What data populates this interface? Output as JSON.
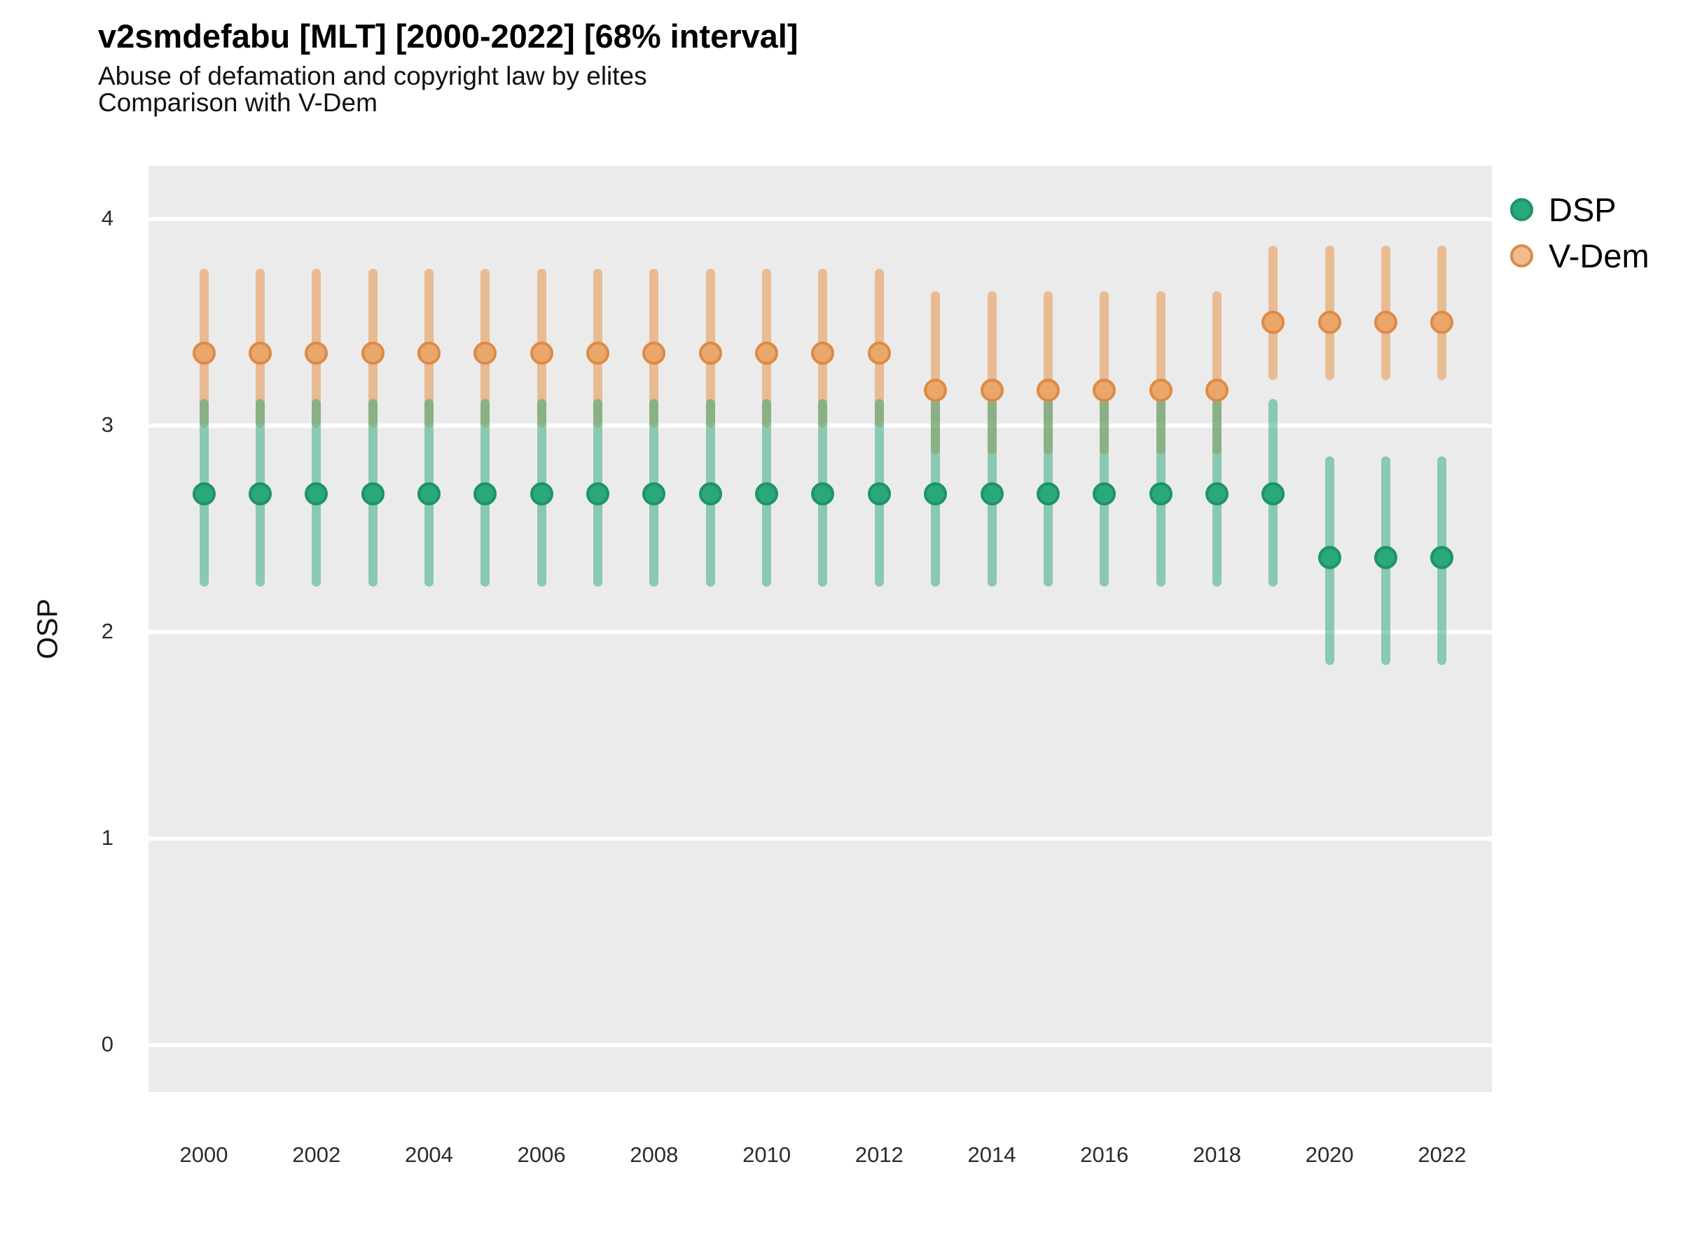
{
  "title": "v2smdefabu [MLT] [2000-2022] [68% interval]",
  "subtitle1": "Abuse of defamation and copyright law by elites",
  "subtitle2": "Comparison with V-Dem",
  "ylabel": "OSP",
  "colors": {
    "panel_background": "#EBEBEB",
    "gridline": "#FFFFFF",
    "dsp_point": "#2AA878",
    "dsp_point_ring": "#1D9467",
    "dsp_interval_bar": "rgba(42,168,120,0.5)",
    "vdem_point": "#EAA76B",
    "vdem_point_ring": "#DD8A45",
    "vdem_interval_bar": "rgba(230,140,60,0.5)",
    "vdem_legend_fill": "#F1BB90"
  },
  "legend": {
    "items": [
      {
        "label": "DSP",
        "series": "DSP"
      },
      {
        "label": "V-Dem",
        "series": "V-Dem"
      }
    ]
  },
  "chart_data": {
    "type": "scatter",
    "title": "v2smdefabu [MLT] [2000-2022] [68% interval]",
    "subtitle": [
      "Abuse of defamation and copyright law by elites",
      "Comparison with V-Dem"
    ],
    "interval": "68%",
    "xlabel": "",
    "ylabel": "OSP",
    "x": [
      2000,
      2001,
      2002,
      2003,
      2004,
      2005,
      2006,
      2007,
      2008,
      2009,
      2010,
      2011,
      2012,
      2013,
      2014,
      2015,
      2016,
      2017,
      2018,
      2019,
      2020,
      2021,
      2022
    ],
    "xticks": [
      2000,
      2002,
      2004,
      2006,
      2008,
      2010,
      2012,
      2014,
      2016,
      2018,
      2020,
      2022
    ],
    "yticks": [
      0,
      1,
      2,
      3,
      4
    ],
    "ylim": [
      -0.23,
      4.26
    ],
    "grid": "major-only",
    "legend_position": "right",
    "series": [
      {
        "name": "DSP",
        "values": [
          2.67,
          2.67,
          2.67,
          2.67,
          2.67,
          2.67,
          2.67,
          2.67,
          2.67,
          2.67,
          2.67,
          2.67,
          2.67,
          2.67,
          2.67,
          2.67,
          2.67,
          2.67,
          2.67,
          2.67,
          2.36,
          2.36,
          2.36
        ],
        "lo": [
          2.22,
          2.22,
          2.22,
          2.22,
          2.22,
          2.22,
          2.22,
          2.22,
          2.22,
          2.22,
          2.22,
          2.22,
          2.22,
          2.22,
          2.22,
          2.22,
          2.22,
          2.22,
          2.22,
          2.22,
          1.84,
          1.84,
          1.84
        ],
        "hi": [
          3.13,
          3.13,
          3.13,
          3.13,
          3.13,
          3.13,
          3.13,
          3.13,
          3.13,
          3.13,
          3.13,
          3.13,
          3.13,
          3.13,
          3.13,
          3.13,
          3.13,
          3.13,
          3.13,
          3.13,
          2.85,
          2.85,
          2.85
        ]
      },
      {
        "name": "V-Dem",
        "values": [
          3.35,
          3.35,
          3.35,
          3.35,
          3.35,
          3.35,
          3.35,
          3.35,
          3.35,
          3.35,
          3.35,
          3.35,
          3.35,
          3.17,
          3.17,
          3.17,
          3.17,
          3.17,
          3.17,
          3.5,
          3.5,
          3.5,
          3.5
        ],
        "lo": [
          2.99,
          2.99,
          2.99,
          2.99,
          2.99,
          2.99,
          2.99,
          2.99,
          2.99,
          2.99,
          2.99,
          2.99,
          2.99,
          2.86,
          2.86,
          2.86,
          2.86,
          2.86,
          2.86,
          3.22,
          3.22,
          3.22,
          3.22
        ],
        "hi": [
          3.76,
          3.76,
          3.76,
          3.76,
          3.76,
          3.76,
          3.76,
          3.76,
          3.76,
          3.76,
          3.76,
          3.76,
          3.76,
          3.65,
          3.65,
          3.65,
          3.65,
          3.65,
          3.65,
          3.87,
          3.87,
          3.87,
          3.87
        ]
      }
    ]
  }
}
